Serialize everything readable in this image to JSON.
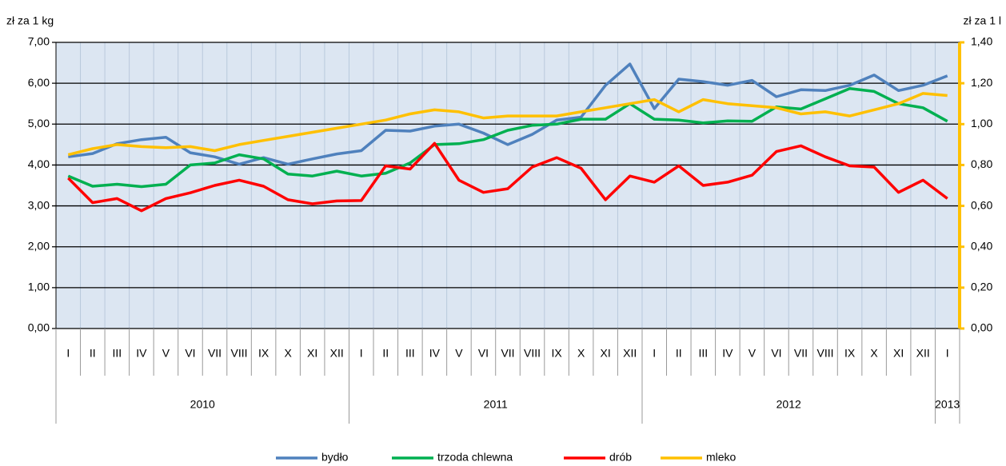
{
  "chart_data": {
    "type": "line",
    "y_label": "zł za 1 kg",
    "y2_label": "zł za 1 l",
    "categories": [
      "I",
      "II",
      "III",
      "IV",
      "V",
      "VI",
      "VII",
      "VIII",
      "IX",
      "X",
      "XI",
      "XII",
      "I",
      "II",
      "III",
      "IV",
      "V",
      "VI",
      "VII",
      "VIII",
      "IX",
      "X",
      "XI",
      "XII",
      "I",
      "II",
      "III",
      "IV",
      "V",
      "VI",
      "VII",
      "VIII",
      "IX",
      "X",
      "XI",
      "XII",
      "I"
    ],
    "x_groups": [
      "2010",
      "2011",
      "2012",
      "2013"
    ],
    "ylim": [
      0,
      7
    ],
    "yticks": [
      {
        "value": 0,
        "label": "0,00"
      },
      {
        "value": 1,
        "label": "1,00"
      },
      {
        "value": 2,
        "label": "2,00"
      },
      {
        "value": 3,
        "label": "3,00"
      },
      {
        "value": 4,
        "label": "4,00"
      },
      {
        "value": 5,
        "label": "5,00"
      },
      {
        "value": 6,
        "label": "6,00"
      },
      {
        "value": 7,
        "label": "7,00"
      }
    ],
    "y2lim": [
      0,
      1.4
    ],
    "y2ticks": [
      {
        "value": 0,
        "label": "0,00"
      },
      {
        "value": 0.2,
        "label": "0,20"
      },
      {
        "value": 0.4,
        "label": "0,40"
      },
      {
        "value": 0.6,
        "label": "0,60"
      },
      {
        "value": 0.8,
        "label": "0,80"
      },
      {
        "value": 1,
        "label": "1,00"
      },
      {
        "value": 1.2,
        "label": "1,20"
      },
      {
        "value": 1.4,
        "label": "1,40"
      }
    ],
    "grid": true,
    "legend": "bottom",
    "series": [
      {
        "name": "bydło",
        "color": "#4f81bd",
        "values": [
          4.2,
          4.28,
          4.52,
          4.62,
          4.68,
          4.3,
          4.2,
          4.02,
          4.18,
          4.02,
          4.15,
          4.27,
          4.35,
          4.85,
          4.83,
          4.95,
          5.0,
          4.78,
          4.5,
          4.75,
          5.1,
          5.17,
          5.95,
          6.47,
          5.38,
          6.1,
          6.04,
          5.95,
          6.07,
          5.67,
          5.84,
          5.82,
          5.95,
          6.2,
          5.82,
          5.95,
          6.18
        ]
      },
      {
        "name": "trzoda chlewna",
        "color": "#00b050",
        "values": [
          3.73,
          3.48,
          3.53,
          3.47,
          3.53,
          4.0,
          4.05,
          4.25,
          4.15,
          3.78,
          3.73,
          3.85,
          3.73,
          3.8,
          4.05,
          4.5,
          4.52,
          4.62,
          4.85,
          4.97,
          5.0,
          5.12,
          5.12,
          5.5,
          5.12,
          5.1,
          5.03,
          5.08,
          5.07,
          5.42,
          5.37,
          5.62,
          5.87,
          5.8,
          5.5,
          5.4,
          5.07
        ]
      },
      {
        "name": "drób",
        "color": "#ff0000",
        "values": [
          3.68,
          3.08,
          3.18,
          2.88,
          3.18,
          3.32,
          3.5,
          3.63,
          3.48,
          3.15,
          3.05,
          3.12,
          3.13,
          3.98,
          3.9,
          4.53,
          3.63,
          3.33,
          3.42,
          3.95,
          4.18,
          3.92,
          3.15,
          3.73,
          3.58,
          3.98,
          3.5,
          3.58,
          3.75,
          4.33,
          4.47,
          4.2,
          3.98,
          3.95,
          3.33,
          3.63,
          3.18
        ]
      },
      {
        "name": "mleko",
        "color": "#ffc000",
        "axis": "y2",
        "values": [
          0.85,
          0.88,
          0.9,
          0.89,
          0.885,
          0.89,
          0.87,
          0.9,
          0.92,
          0.94,
          0.96,
          0.98,
          1.0,
          1.02,
          1.05,
          1.07,
          1.06,
          1.03,
          1.04,
          1.04,
          1.04,
          1.06,
          1.08,
          1.1,
          1.12,
          1.06,
          1.12,
          1.1,
          1.09,
          1.08,
          1.05,
          1.06,
          1.04,
          1.07,
          1.1,
          1.15,
          1.14
        ]
      }
    ]
  }
}
